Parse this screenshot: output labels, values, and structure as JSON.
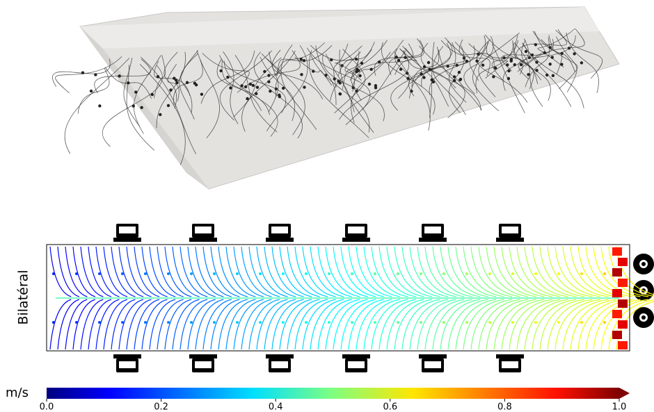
{
  "panel_label": "Bilatéral",
  "colorbar": {
    "unit": "m/s",
    "lim": [
      0,
      1.0
    ],
    "ticks": [
      {
        "value": 0,
        "label": "0.0"
      },
      {
        "value": 0.2,
        "label": "0.2"
      },
      {
        "value": 0.4,
        "label": "0.4"
      },
      {
        "value": 0.6,
        "label": "0.6"
      },
      {
        "value": 0.8,
        "label": "0.8"
      },
      {
        "value": 1.0,
        "label": "1.0"
      }
    ]
  }
}
